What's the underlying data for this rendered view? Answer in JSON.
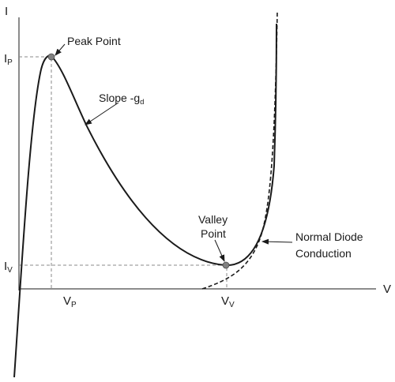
{
  "axes": {
    "x_label": "V",
    "y_label": "I"
  },
  "ticks": {
    "ip": {
      "main": "I",
      "sub": "P"
    },
    "iv": {
      "main": "I",
      "sub": "V"
    },
    "vp": {
      "main": "V",
      "sub": "P"
    },
    "vv": {
      "main": "V",
      "sub": "V"
    }
  },
  "annotations": {
    "peak_point": "Peak Point",
    "slope": {
      "main": "Slope -g",
      "sub": "d"
    },
    "valley_point": {
      "line1": "Valley",
      "line2": "Point"
    },
    "normal_diode": {
      "line1": "Normal Diode",
      "line2": "Conduction"
    }
  },
  "colors": {
    "ink": "#1a1a1a",
    "guide": "#888888",
    "marker_fill": "#808080"
  }
}
